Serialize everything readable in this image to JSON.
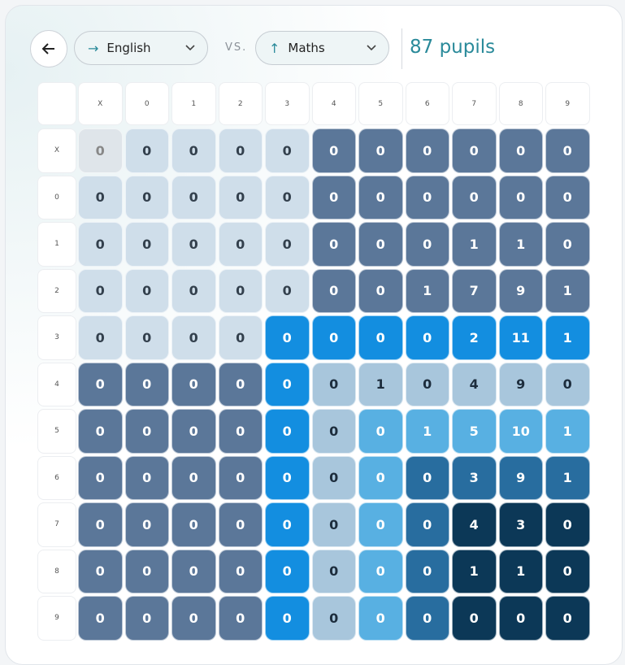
{
  "header": {
    "subject_a": "English",
    "separator": "VS.",
    "subject_b": "Maths",
    "pupils": "87 pupils"
  },
  "table": {
    "columns": [
      "X",
      "0",
      "1",
      "2",
      "3",
      "4",
      "5",
      "6",
      "7",
      "8",
      "9"
    ],
    "row_labels": [
      "X",
      "0",
      "1",
      "2",
      "3",
      "4",
      "5",
      "6",
      "7",
      "8",
      "9"
    ],
    "rows": [
      [
        0,
        0,
        0,
        0,
        0,
        0,
        0,
        0,
        0,
        0,
        0
      ],
      [
        0,
        0,
        0,
        0,
        0,
        0,
        0,
        0,
        0,
        0,
        0
      ],
      [
        0,
        0,
        0,
        0,
        0,
        0,
        0,
        0,
        1,
        1,
        0
      ],
      [
        0,
        0,
        0,
        0,
        0,
        0,
        0,
        1,
        7,
        9,
        1
      ],
      [
        0,
        0,
        0,
        0,
        0,
        0,
        0,
        0,
        2,
        11,
        1
      ],
      [
        0,
        0,
        0,
        0,
        0,
        0,
        1,
        0,
        4,
        9,
        0
      ],
      [
        0,
        0,
        0,
        0,
        0,
        0,
        0,
        1,
        5,
        10,
        1
      ],
      [
        0,
        0,
        0,
        0,
        0,
        0,
        0,
        0,
        3,
        9,
        1
      ],
      [
        0,
        0,
        0,
        0,
        0,
        0,
        0,
        0,
        4,
        3,
        0
      ],
      [
        0,
        0,
        0,
        0,
        0,
        0,
        0,
        0,
        1,
        1,
        0
      ],
      [
        0,
        0,
        0,
        0,
        0,
        0,
        0,
        0,
        0,
        0,
        0
      ]
    ]
  }
}
